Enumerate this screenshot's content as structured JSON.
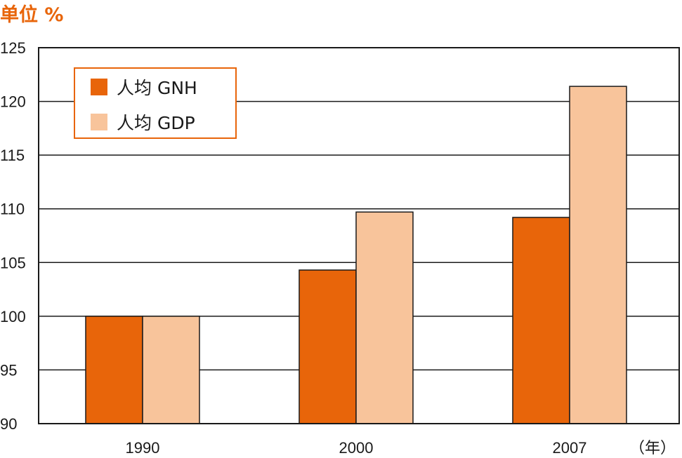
{
  "chart_data": {
    "type": "bar",
    "unit_label": "单位 %",
    "x_unit_label": "（年）",
    "categories": [
      "1990",
      "2000",
      "2007"
    ],
    "series": [
      {
        "name": "人均 GNH",
        "values": [
          100,
          104.3,
          109.2
        ],
        "color": "#E8650A"
      },
      {
        "name": "人均 GDP",
        "values": [
          100,
          109.7,
          121.4
        ],
        "color": "#F8C49B"
      }
    ],
    "ylim": [
      90,
      125
    ],
    "y_ticks": [
      90,
      95,
      100,
      105,
      110,
      115,
      120,
      125
    ],
    "grid": true,
    "legend_position": "top-left",
    "colors": {
      "accent": "#E8650A",
      "axis": "#1a1a1a"
    }
  }
}
